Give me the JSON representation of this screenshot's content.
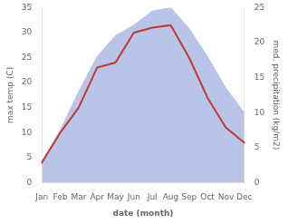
{
  "chart_data": {
    "type": "line",
    "categories": [
      "Jan",
      "Feb",
      "Mar",
      "Apr",
      "May",
      "Jun",
      "Jul",
      "Aug",
      "Sep",
      "Oct",
      "Nov",
      "Dec"
    ],
    "xlabel": "date (month)",
    "ylabel": "max temp (C)",
    "y2label": "med. precipitation (kg/m2)",
    "series": [
      {
        "type": "area",
        "axis": "y2",
        "color": "#b8c4e8",
        "values": [
          3.0,
          7.5,
          13.0,
          18.0,
          21.0,
          22.5,
          24.5,
          25.0,
          22.0,
          18.0,
          13.5,
          10.0
        ]
      },
      {
        "type": "line",
        "color": "#c0392b",
        "values": [
          4.0,
          10.0,
          15.0,
          23.0,
          24.0,
          30.0,
          31.0,
          31.5,
          25.0,
          17.0,
          11.0,
          8.0
        ]
      }
    ],
    "ylim": [
      0,
      35
    ],
    "yticks": [
      0,
      5,
      10,
      15,
      20,
      25,
      30,
      35
    ],
    "y2lim": [
      0,
      25
    ],
    "y2ticks": [
      0,
      5,
      10,
      15,
      20,
      25
    ],
    "grid": false
  }
}
